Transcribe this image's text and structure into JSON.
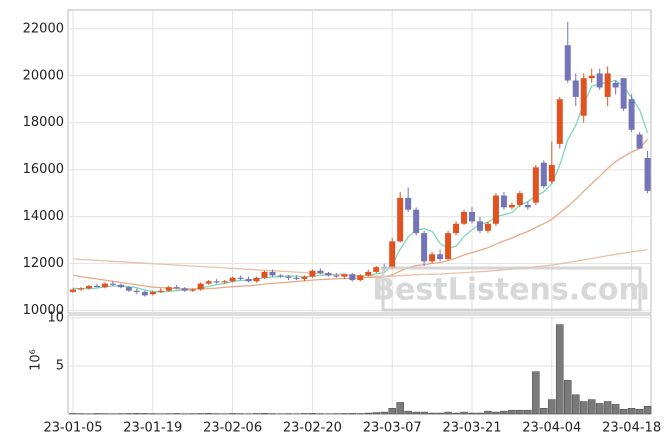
{
  "chart_data": [
    {
      "type": "candlestick",
      "open": [
        10800,
        10900,
        10950,
        11050,
        11000,
        11150,
        11100,
        11000,
        10850,
        10800,
        10700,
        10800,
        10850,
        11000,
        10950,
        10850,
        10900,
        11150,
        11250,
        11200,
        11250,
        11400,
        11350,
        11250,
        11400,
        11650,
        11500,
        11450,
        11400,
        11350,
        11450,
        11700,
        11600,
        11500,
        11450,
        11550,
        11300,
        11500,
        11650,
        11850,
        11800,
        12950,
        14800,
        14300,
        13300,
        12100,
        12400,
        12200,
        13300,
        13700,
        14200,
        13800,
        13400,
        13700,
        14900,
        14400,
        14500,
        14500,
        14600,
        16300,
        15500,
        17100,
        21300,
        19800,
        18300,
        19900,
        20100,
        19100,
        19700,
        19900,
        19000,
        17500,
        16500
      ],
      "high": [
        10950,
        11000,
        11100,
        11150,
        11200,
        11250,
        11150,
        11050,
        10950,
        10850,
        10850,
        10950,
        11050,
        11100,
        11000,
        10950,
        11200,
        11300,
        11350,
        11300,
        11450,
        11500,
        11450,
        11450,
        11700,
        11750,
        11550,
        11500,
        11500,
        11500,
        11750,
        11800,
        11650,
        11600,
        11550,
        11600,
        11550,
        11750,
        11900,
        12000,
        13100,
        15050,
        15250,
        14400,
        13400,
        12500,
        12600,
        13400,
        13800,
        14300,
        14400,
        14000,
        13800,
        15000,
        15050,
        14600,
        15100,
        14650,
        16200,
        16400,
        17200,
        19100,
        22300,
        20100,
        20100,
        20300,
        20300,
        20400,
        19800,
        19900,
        19200,
        17600,
        16800
      ],
      "low": [
        10750,
        10850,
        10900,
        11000,
        10950,
        11050,
        10950,
        10800,
        10700,
        10600,
        10650,
        10750,
        10800,
        10900,
        10800,
        10800,
        10850,
        11100,
        11150,
        11150,
        11200,
        11300,
        11200,
        11200,
        11350,
        11450,
        11400,
        11300,
        11300,
        11250,
        11400,
        11550,
        11450,
        11400,
        11350,
        11250,
        11250,
        11450,
        11600,
        11700,
        11750,
        12900,
        14200,
        13200,
        11900,
        12000,
        12100,
        12150,
        13200,
        13650,
        13700,
        13300,
        13300,
        13600,
        14300,
        14300,
        14400,
        14300,
        14500,
        15200,
        15400,
        16900,
        19700,
        18700,
        18000,
        19700,
        19400,
        18700,
        19200,
        18500,
        17600,
        16900,
        15000
      ],
      "close": [
        10900,
        10950,
        11050,
        11000,
        11150,
        11100,
        11000,
        10850,
        10800,
        10650,
        10800,
        10850,
        11000,
        10950,
        10850,
        10900,
        11150,
        11250,
        11200,
        11250,
        11400,
        11350,
        11250,
        11400,
        11650,
        11500,
        11450,
        11400,
        11350,
        11450,
        11700,
        11600,
        11500,
        11450,
        11550,
        11300,
        11500,
        11650,
        11850,
        11800,
        12950,
        14800,
        14300,
        13300,
        12100,
        12400,
        12200,
        13300,
        13700,
        14200,
        13800,
        13400,
        13700,
        14900,
        14400,
        14500,
        15000,
        14400,
        16100,
        15300,
        16200,
        19000,
        19800,
        19100,
        19900,
        20000,
        19500,
        20100,
        19500,
        18600,
        17700,
        16900,
        15100
      ],
      "up_color": "#e0521f",
      "down_color": "#7474b8",
      "moving_averages": [
        {
          "color": "#7fd6b8",
          "values": [
            10950,
            10930,
            10940,
            10960,
            11010,
            11050,
            11060,
            11020,
            10980,
            10880,
            10820,
            10790,
            10820,
            10850,
            10890,
            10910,
            10970,
            11030,
            11110,
            11150,
            11250,
            11290,
            11290,
            11330,
            11410,
            11430,
            11450,
            11480,
            11470,
            11430,
            11470,
            11500,
            11520,
            11540,
            11560,
            11480,
            11460,
            11490,
            11570,
            11620,
            11950,
            12610,
            13140,
            13430,
            13490,
            13380,
            12860,
            12660,
            12740,
            13160,
            13440,
            13680,
            13760,
            14000,
            14080,
            14180,
            14500,
            14640,
            14880,
            15060,
            15400,
            16200,
            17280,
            17880,
            18800,
            19560,
            19660,
            19720,
            19800,
            19540,
            19080,
            18560,
            17560
          ]
        },
        {
          "color": "#e8a98a",
          "values": [
            11500,
            11450,
            11400,
            11350,
            11300,
            11250,
            11200,
            11150,
            11100,
            11050,
            11000,
            10980,
            10960,
            10940,
            10930,
            10920,
            10930,
            10940,
            10960,
            10990,
            11020,
            11040,
            11060,
            11090,
            11130,
            11160,
            11180,
            11210,
            11240,
            11270,
            11300,
            11320,
            11340,
            11350,
            11370,
            11380,
            11390,
            11410,
            11430,
            11450,
            11520,
            11690,
            11830,
            11920,
            11960,
            12010,
            12050,
            12130,
            12240,
            12370,
            12470,
            12570,
            12680,
            12830,
            12970,
            13090,
            13240,
            13370,
            13540,
            13700,
            13890,
            14160,
            14440,
            14740,
            15080,
            15410,
            15720,
            16060,
            16340,
            16560,
            16750,
            16900,
            17300
          ]
        },
        {
          "color": "#e9c0a8",
          "values": [
            12200,
            12180,
            12160,
            12140,
            12120,
            12100,
            12080,
            12060,
            12040,
            12020,
            12000,
            11980,
            11960,
            11940,
            11920,
            11900,
            11880,
            11860,
            11840,
            11820,
            11800,
            11780,
            11760,
            11740,
            11720,
            11700,
            11680,
            11660,
            11640,
            11620,
            11600,
            11580,
            11560,
            11540,
            11520,
            11500,
            11490,
            11480,
            11470,
            11460,
            11470,
            11490,
            11510,
            11530,
            11540,
            11550,
            11560,
            11580,
            11600,
            11620,
            11640,
            11660,
            11680,
            11710,
            11740,
            11770,
            11800,
            11830,
            11870,
            11900,
            11940,
            11990,
            12050,
            12100,
            12160,
            12220,
            12280,
            12340,
            12400,
            12450,
            12500,
            12550,
            12600
          ]
        }
      ],
      "ylim": [
        9900,
        22800
      ],
      "yticks": [
        10000,
        12000,
        14000,
        16000,
        18000,
        20000,
        22000
      ],
      "grid": true,
      "watermark": "BestListens.com"
    },
    {
      "type": "bar",
      "categories": [
        "23-01-05",
        null,
        null,
        null,
        null,
        null,
        null,
        null,
        null,
        null,
        "23-01-19",
        null,
        null,
        null,
        null,
        null,
        null,
        null,
        null,
        null,
        "23-02-06",
        null,
        null,
        null,
        null,
        null,
        null,
        null,
        null,
        null,
        "23-02-20",
        null,
        null,
        null,
        null,
        null,
        null,
        null,
        null,
        null,
        "23-03-07",
        null,
        null,
        null,
        null,
        null,
        null,
        null,
        null,
        null,
        "23-03-21",
        null,
        null,
        null,
        null,
        null,
        null,
        null,
        null,
        null,
        "23-04-04",
        null,
        null,
        null,
        null,
        null,
        null,
        null,
        null,
        null,
        "23-04-18",
        null,
        null
      ],
      "values": [
        0.05,
        0.04,
        0.03,
        0.05,
        0.04,
        0.03,
        0.04,
        0.05,
        0.06,
        0.05,
        0.04,
        0.03,
        0.04,
        0.05,
        0.03,
        0.04,
        0.05,
        0.06,
        0.04,
        0.03,
        0.05,
        0.04,
        0.03,
        0.05,
        0.06,
        0.04,
        0.03,
        0.04,
        0.03,
        0.05,
        0.06,
        0.04,
        0.03,
        0.04,
        0.05,
        0.06,
        0.05,
        0.1,
        0.15,
        0.2,
        0.6,
        1.2,
        0.3,
        0.2,
        0.2,
        0.1,
        0.1,
        0.2,
        0.1,
        0.2,
        0.1,
        0.1,
        0.3,
        0.2,
        0.3,
        0.4,
        0.4,
        0.4,
        4.4,
        0.6,
        1.5,
        9.3,
        3.5,
        2.0,
        1.3,
        1.5,
        1.1,
        1.3,
        1.0,
        0.5,
        0.6,
        0.5,
        0.8
      ],
      "color": "#7a7a7a",
      "ylim": [
        0,
        10.3
      ],
      "yticks": [
        5,
        10
      ],
      "ylabel": "10⁶",
      "grid": true
    }
  ]
}
